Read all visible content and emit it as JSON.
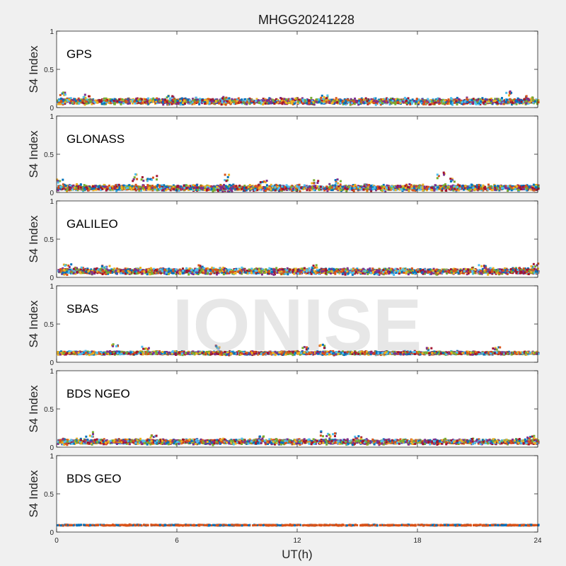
{
  "figure": {
    "title": "MHGG20241228",
    "watermark": "IONISE",
    "xlabel": "UT(h)"
  },
  "chart_data": {
    "type": "scatter",
    "xlim": [
      0,
      24
    ],
    "ylim": [
      0,
      1
    ],
    "xticks": [
      0,
      6,
      12,
      18,
      24
    ],
    "yticks": [
      0,
      0.5,
      1
    ],
    "xtick_labels": [
      "0",
      "6",
      "12",
      "18",
      "24"
    ],
    "ytick_labels": [
      "0",
      "0.5",
      "1"
    ],
    "ylabel": "S4 Index",
    "grid": false,
    "series_colors": [
      "#0072BD",
      "#D95319",
      "#EDB120",
      "#7E2F8E",
      "#77AC30",
      "#4DBEEE",
      "#A2142F"
    ],
    "panels": [
      {
        "label": "GPS",
        "base": 0.08,
        "noise": 0.035,
        "spikes": [
          [
            0.3,
            0.2
          ],
          [
            1.4,
            0.17
          ],
          [
            5.6,
            0.17
          ],
          [
            8.4,
            0.16
          ],
          [
            13.3,
            0.16
          ],
          [
            22.5,
            0.21
          ],
          [
            23.5,
            0.15
          ]
        ]
      },
      {
        "label": "GLONASS",
        "base": 0.06,
        "noise": 0.035,
        "spikes": [
          [
            0.1,
            0.18
          ],
          [
            3.9,
            0.24
          ],
          [
            4.3,
            0.23
          ],
          [
            4.8,
            0.25
          ],
          [
            8.5,
            0.24
          ],
          [
            10.3,
            0.17
          ],
          [
            12.8,
            0.16
          ],
          [
            14.0,
            0.17
          ],
          [
            19.1,
            0.28
          ],
          [
            19.6,
            0.2
          ]
        ]
      },
      {
        "label": "GALILEO",
        "base": 0.08,
        "noise": 0.035,
        "spikes": [
          [
            0.5,
            0.18
          ],
          [
            1.0,
            0.14
          ],
          [
            2.4,
            0.16
          ],
          [
            7.2,
            0.16
          ],
          [
            12.8,
            0.16
          ],
          [
            21.2,
            0.17
          ],
          [
            23.8,
            0.18
          ]
        ]
      },
      {
        "label": "SBAS",
        "base": 0.12,
        "noise": 0.02,
        "spikes": [
          [
            2.8,
            0.25
          ],
          [
            4.4,
            0.21
          ],
          [
            8.0,
            0.22
          ],
          [
            12.3,
            0.2
          ],
          [
            13.2,
            0.23
          ],
          [
            18.5,
            0.2
          ],
          [
            21.9,
            0.2
          ]
        ]
      },
      {
        "label": "BDS NGEO",
        "base": 0.07,
        "noise": 0.03,
        "spikes": [
          [
            1.6,
            0.2
          ],
          [
            4.8,
            0.16
          ],
          [
            10.2,
            0.14
          ],
          [
            13.3,
            0.21
          ],
          [
            13.7,
            0.18
          ],
          [
            15.0,
            0.15
          ],
          [
            23.6,
            0.15
          ]
        ]
      },
      {
        "label": "BDS GEO",
        "base": 0.09,
        "noise": 0.006,
        "spikes": []
      }
    ]
  }
}
